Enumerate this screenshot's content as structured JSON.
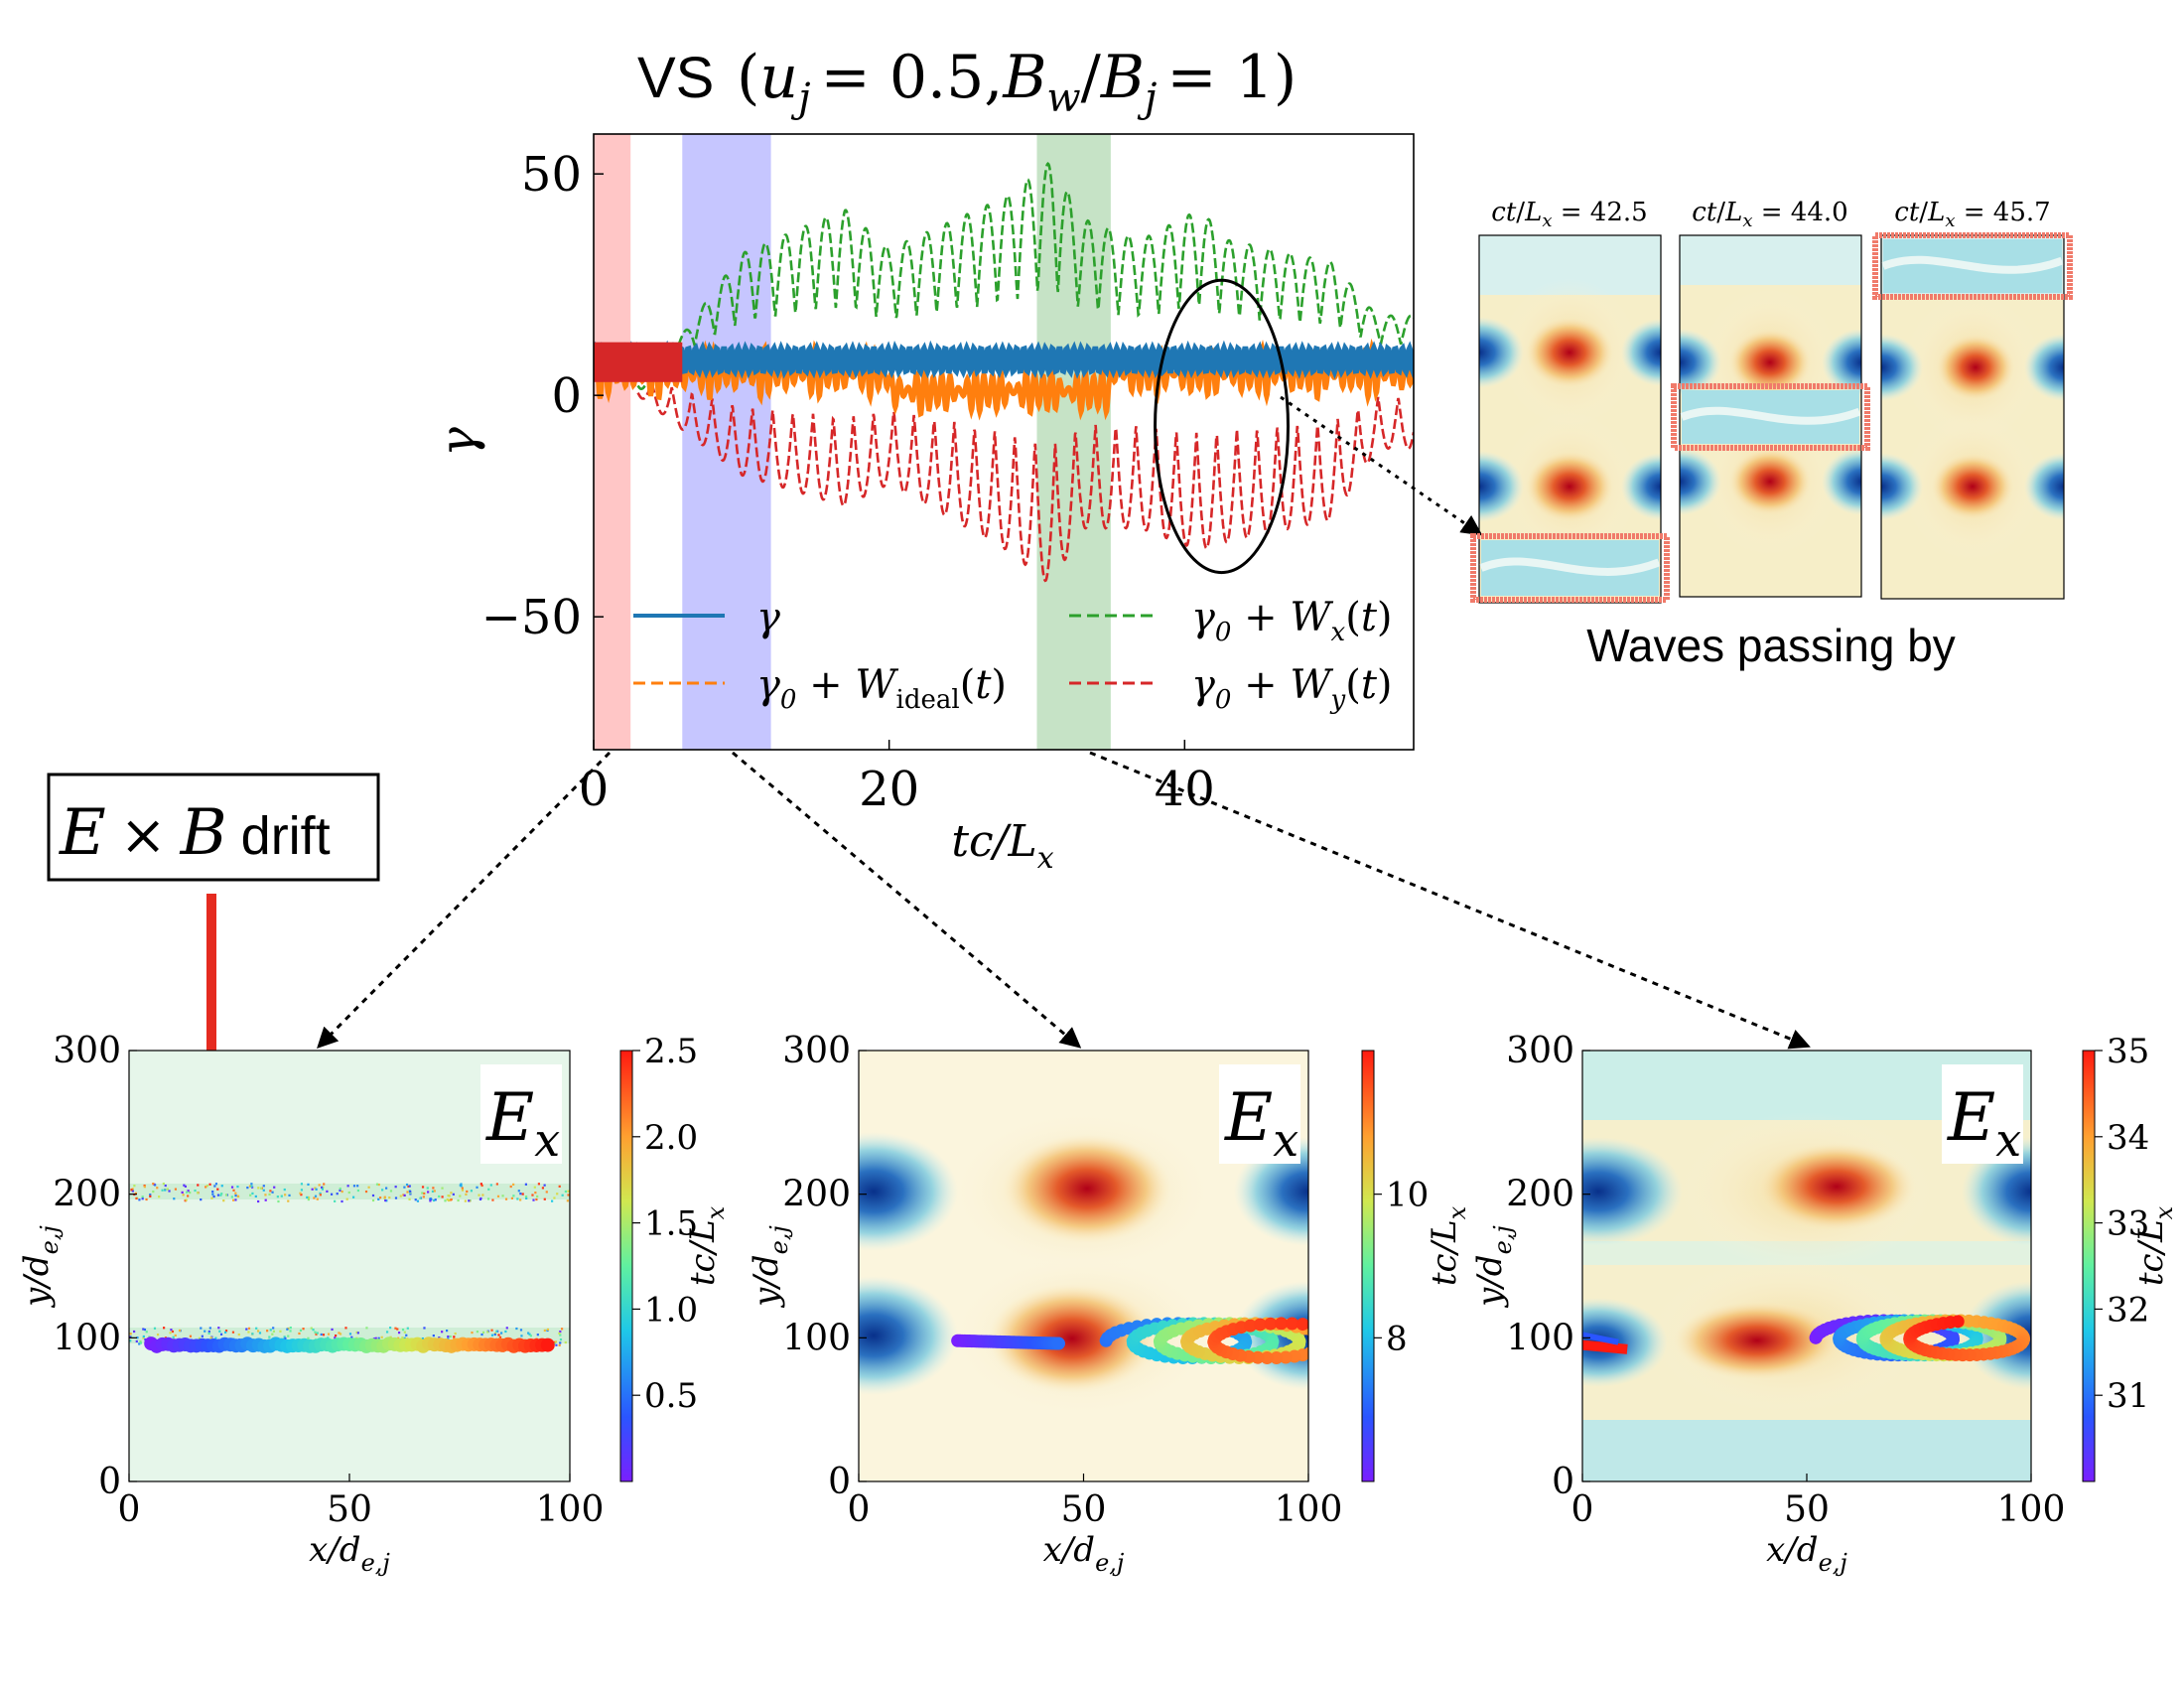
{
  "title": {
    "prefix": "VS",
    "expr": "(u_j = 0.5, B_w/B_j = 1)",
    "u": "u",
    "u_sub": "j",
    "eq1": "= 0.5,",
    "B1": "B",
    "B1_sub": "w",
    "slash": "/",
    "B2": "B",
    "B2_sub": "j",
    "eq2": "= 1)",
    "open": "("
  },
  "colors": {
    "gamma": "#1f77b4",
    "ideal": "#ff7f0e",
    "wx": "#2ca02c",
    "wy": "#d62728",
    "span_red": "#ffb3b3",
    "span_blue": "#b3b3ff",
    "span_green": "#b3dab3",
    "highlight_box": "#f07a6a",
    "arrow_red": "#e52b20"
  },
  "chart_data": [
    {
      "type": "line",
      "id": "main",
      "xlabel": "tc/L_x",
      "ylabel": "γ",
      "xlim": [
        0,
        55.5
      ],
      "ylim": [
        -80,
        59
      ],
      "xticks": [
        0,
        20,
        40
      ],
      "yticks": [
        50,
        0,
        -50
      ],
      "xtick_labels": [
        "0",
        "20",
        "40"
      ],
      "ytick_labels": [
        "50",
        "0",
        "−50"
      ],
      "shaded_spans": [
        {
          "x0": 0,
          "x1": 2.5,
          "color": "red"
        },
        {
          "x0": 6,
          "x1": 12,
          "color": "blue"
        },
        {
          "x0": 30,
          "x1": 35,
          "color": "green"
        }
      ],
      "ellipse": {
        "cx": 42.5,
        "cy": -7,
        "rx": 4.5,
        "ry": 33
      },
      "series": [
        {
          "name": "γ",
          "style": "solid",
          "color_key": "gamma",
          "baseline": 8,
          "amplitude": 2.5,
          "t_start": 0,
          "t_end": 55.5
        },
        {
          "name": "γ0 + W_ideal(t)",
          "style": "dashed",
          "color_key": "ideal",
          "baseline": 5,
          "amplitude": 6,
          "t_start": 0,
          "t_end": 55.5
        },
        {
          "name": "γ0 + W_x(t)",
          "style": "dashed",
          "color_key": "wx",
          "peaks": [
            [
              10,
              32
            ],
            [
              17,
              42
            ],
            [
              20,
              33
            ],
            [
              28,
              45
            ],
            [
              31,
              53
            ],
            [
              33,
              40
            ],
            [
              37,
              35
            ],
            [
              41,
              42
            ],
            [
              43,
              35
            ],
            [
              50,
              30
            ],
            [
              53,
              18
            ]
          ],
          "t_start": 3,
          "t_end": 55.5
        },
        {
          "name": "γ0 + W_y(t)",
          "style": "dashed",
          "color_key": "wy",
          "troughs": [
            [
              10,
              -18
            ],
            [
              17,
              -25
            ],
            [
              20,
              -20
            ],
            [
              28,
              -35
            ],
            [
              31,
              -43
            ],
            [
              33,
              -30
            ],
            [
              37,
              -30
            ],
            [
              41,
              -35
            ],
            [
              43,
              -33
            ],
            [
              50,
              -28
            ],
            [
              53,
              -12
            ]
          ],
          "t_start": 3,
          "t_end": 55.5
        }
      ],
      "legend": {
        "placement": "lower center",
        "entries": [
          {
            "label": "γ",
            "color_key": "gamma",
            "style": "solid"
          },
          {
            "label": "γ0 + W_x(t)",
            "color_key": "wx",
            "style": "dashed"
          },
          {
            "label": "γ0 + W_ideal(t)",
            "color_key": "ideal",
            "style": "dashed"
          },
          {
            "label": "γ0 + W_y(t)",
            "color_key": "wy",
            "style": "dashed"
          }
        ]
      }
    },
    {
      "type": "heatmap",
      "id": "inset1",
      "title": "ct/L_x = 42.5",
      "highlight": "bottom band"
    },
    {
      "type": "heatmap",
      "id": "inset2",
      "title": "ct/L_x = 44.0",
      "highlight": "middle band"
    },
    {
      "type": "heatmap",
      "id": "inset3",
      "title": "ct/L_x = 45.7",
      "highlight": "top band"
    },
    {
      "type": "heatmap",
      "id": "panel1",
      "field_label": "E_x",
      "xlabel": "x/d_e,j",
      "ylabel": "y/d_e,j",
      "xlim": [
        0,
        100
      ],
      "ylim": [
        0,
        300
      ],
      "xticks": [
        "0",
        "50",
        "100"
      ],
      "yticks": [
        "0",
        "100",
        "200",
        "300"
      ],
      "colorbar": {
        "label": "tc/L_x",
        "min": 0,
        "max": 2.5,
        "ticks": [
          "0.5",
          "1.0",
          "1.5",
          "2.0",
          "2.5"
        ],
        "tick_values": [
          0.5,
          1.0,
          1.5,
          2.0,
          2.5
        ]
      },
      "trajectory": {
        "kind": "line",
        "x0": 5,
        "x1": 95,
        "y": 95
      }
    },
    {
      "type": "heatmap",
      "id": "panel2",
      "field_label": "E_x",
      "xlabel": "x/d_e,j",
      "ylabel": "y/d_e,j",
      "xlim": [
        0,
        100
      ],
      "ylim": [
        0,
        300
      ],
      "xticks": [
        "0",
        "50",
        "100"
      ],
      "yticks": [
        "0",
        "100",
        "200",
        "300"
      ],
      "colorbar": {
        "label": "tc/L_x",
        "min": 6,
        "max": 12,
        "ticks": [
          "8",
          "10"
        ],
        "tick_values": [
          8,
          10
        ]
      },
      "trajectory": {
        "kind": "loops",
        "x_start": 22,
        "x_end": 95,
        "y": 98
      }
    },
    {
      "type": "heatmap",
      "id": "panel3",
      "field_label": "E_x",
      "xlabel": "x/d_e,j",
      "ylabel": "y/d_e,j",
      "xlim": [
        0,
        100
      ],
      "ylim": [
        0,
        300
      ],
      "xticks": [
        "0",
        "50",
        "100"
      ],
      "yticks": [
        "0",
        "100",
        "200",
        "300"
      ],
      "colorbar": {
        "label": "tc/L_x",
        "min": 30,
        "max": 35,
        "ticks": [
          "31",
          "32",
          "33",
          "34",
          "35"
        ],
        "tick_values": [
          31,
          32,
          33,
          34,
          35
        ]
      },
      "trajectory": {
        "kind": "loops",
        "x_start": 50,
        "x_end": 100,
        "y": 100
      }
    }
  ],
  "annotations": {
    "exb_E": "E",
    "exb_times": "×",
    "exb_B": "B",
    "exb_drift": "drift",
    "waves_caption": "Waves passing by"
  }
}
